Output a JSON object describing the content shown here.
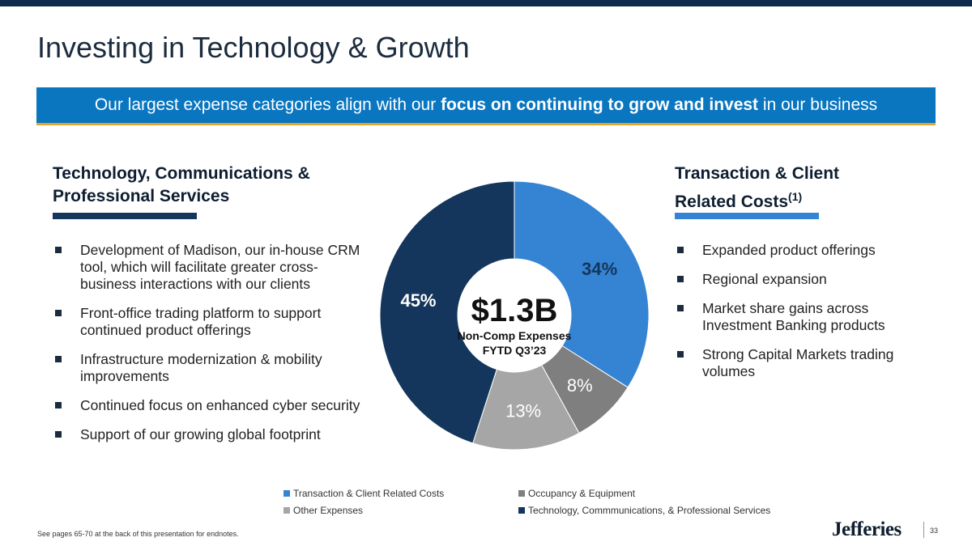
{
  "page": {
    "title": "Investing in Technology & Growth",
    "banner": {
      "pre": "Our largest expense categories align with our ",
      "bold": "focus on continuing to grow and invest",
      "post": " in our business"
    },
    "left_section": {
      "title_line1": "Technology, Communications &",
      "title_line2": "Professional Services",
      "bar_color": "#14365c",
      "bullets": [
        "Development of Madison, our in-house CRM tool, which will facilitate greater cross-business interactions with our clients",
        "Front-office trading platform to support continued product offerings",
        "Infrastructure modernization & mobility improvements",
        "Continued focus on enhanced cyber security",
        "Support of our growing global footprint"
      ]
    },
    "right_section": {
      "title_line1": "Transaction & Client",
      "title_line2": "Related Costs",
      "title_superscript": "(1)",
      "bar_color": "#3584d4",
      "bullets": [
        "Expanded product offerings",
        "Regional expansion",
        "Market share gains across Investment Banking products",
        "Strong Capital Markets trading volumes"
      ]
    },
    "center": {
      "value": "$1.3B",
      "label_line1": "Non-Comp Expenses",
      "label_line2": "FYTD Q3’23"
    },
    "footnote": "See pages 65-70 at the back of this presentation for endnotes.",
    "logo": "Jefferies",
    "page_number": "33"
  },
  "chart_data": {
    "type": "pie",
    "donut": true,
    "start": "12 o'clock, clockwise",
    "slices": [
      {
        "name": "Transaction & Client Related Costs",
        "value": 34,
        "label": "34%",
        "color": "#3584d4",
        "label_color": "#14365c"
      },
      {
        "name": "Occupancy & Equipment",
        "value": 8,
        "label": "8%",
        "color": "#7f7f7f",
        "label_color": "#ffffff"
      },
      {
        "name": "Other Expenses",
        "value": 13,
        "label": "13%",
        "color": "#a6a6a6",
        "label_color": "#ffffff"
      },
      {
        "name": "Technology, Commmunications, & Professional Services",
        "value": 45,
        "label": "45%",
        "color": "#14365c",
        "label_color": "#ffffff"
      }
    ],
    "legend": [
      {
        "label": "Transaction & Client Related Costs",
        "color": "#3584d4"
      },
      {
        "label": "Occupancy & Equipment",
        "color": "#7f7f7f"
      },
      {
        "label": "Other Expenses",
        "color": "#a6a6a6"
      },
      {
        "label": "Technology, Commmunications, & Professional Services",
        "color": "#14365c"
      }
    ]
  }
}
